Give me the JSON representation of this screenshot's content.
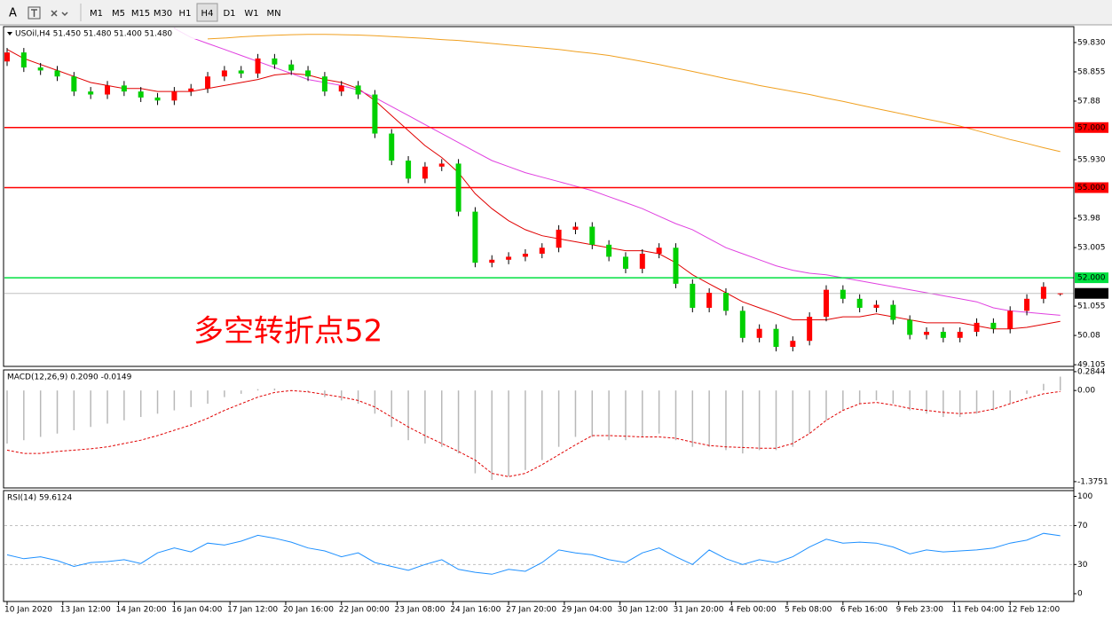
{
  "toolbar": {
    "text_tool": "A",
    "timeframes": [
      "M1",
      "M5",
      "M15",
      "M30",
      "H1",
      "H4",
      "D1",
      "W1",
      "MN"
    ],
    "active": "H4"
  },
  "chart_data": [
    {
      "type": "candlestick",
      "title": "USOil,H4  51.450 51.480 51.400 51.480",
      "annotation": "多空转折点52",
      "up_color": "#ff0000",
      "down_color": "#00d000",
      "x": [
        0,
        3,
        6,
        9,
        12,
        15,
        18,
        21,
        24,
        27,
        30,
        33,
        36,
        39,
        42,
        45,
        48,
        51,
        54,
        57,
        60,
        63,
        66,
        69,
        72,
        75,
        78,
        81,
        84,
        87,
        90,
        93,
        96,
        99,
        102,
        105,
        108,
        111,
        114,
        117,
        120,
        123,
        126,
        129,
        132,
        135,
        138,
        141,
        144,
        147,
        150,
        153,
        156,
        159,
        162,
        165,
        168,
        171,
        174,
        177,
        180,
        183,
        186,
        189
      ],
      "xlim": [
        0,
        190
      ],
      "open": [
        59.2,
        59.5,
        59.0,
        58.9,
        58.7,
        58.2,
        58.1,
        58.4,
        58.2,
        58.0,
        57.9,
        58.2,
        58.3,
        58.7,
        58.9,
        58.8,
        59.3,
        59.1,
        58.9,
        58.7,
        58.2,
        58.4,
        58.1,
        56.8,
        55.9,
        55.3,
        55.7,
        55.8,
        54.2,
        52.5,
        52.6,
        52.7,
        52.8,
        53.0,
        53.6,
        53.7,
        53.1,
        52.7,
        52.3,
        52.8,
        53.0,
        51.8,
        51.0,
        51.5,
        50.9,
        50.0,
        50.3,
        49.7,
        49.9,
        50.7,
        51.6,
        51.3,
        51.0,
        51.1,
        50.6,
        50.1,
        50.2,
        50.0,
        50.2,
        50.5,
        50.3,
        50.9,
        51.3,
        51.45
      ],
      "high": [
        59.65,
        59.65,
        59.15,
        59.05,
        58.85,
        58.35,
        58.55,
        58.55,
        58.35,
        58.15,
        58.35,
        58.45,
        58.85,
        59.05,
        59.05,
        59.45,
        59.45,
        59.25,
        59.05,
        58.85,
        58.55,
        58.55,
        58.25,
        56.95,
        56.05,
        55.85,
        55.95,
        55.95,
        54.35,
        52.75,
        52.85,
        52.95,
        53.15,
        53.75,
        53.85,
        53.85,
        53.25,
        52.85,
        52.95,
        53.15,
        53.15,
        51.95,
        51.65,
        51.65,
        51.05,
        50.45,
        50.45,
        50.05,
        50.85,
        51.75,
        51.75,
        51.45,
        51.25,
        51.25,
        50.75,
        50.35,
        50.35,
        50.35,
        50.65,
        50.65,
        51.05,
        51.45,
        51.85,
        51.48
      ],
      "low": [
        59.05,
        58.85,
        58.75,
        58.55,
        58.05,
        57.95,
        57.95,
        58.05,
        57.85,
        57.75,
        57.75,
        58.05,
        58.15,
        58.55,
        58.65,
        58.65,
        58.95,
        58.75,
        58.55,
        58.05,
        58.05,
        57.95,
        56.65,
        55.75,
        55.15,
        55.15,
        55.55,
        54.05,
        52.35,
        52.35,
        52.45,
        52.55,
        52.65,
        52.85,
        53.45,
        52.95,
        52.55,
        52.15,
        52.15,
        52.65,
        51.65,
        50.85,
        50.85,
        50.75,
        49.85,
        49.85,
        49.55,
        49.55,
        49.75,
        50.55,
        51.15,
        50.85,
        50.85,
        50.45,
        49.95,
        49.95,
        49.85,
        49.85,
        50.05,
        50.15,
        50.15,
        50.75,
        51.15,
        51.4
      ],
      "close": [
        59.5,
        59.0,
        58.9,
        58.7,
        58.2,
        58.1,
        58.4,
        58.2,
        58.0,
        57.9,
        58.2,
        58.3,
        58.7,
        58.9,
        58.8,
        59.3,
        59.1,
        58.9,
        58.7,
        58.2,
        58.4,
        58.1,
        56.8,
        55.9,
        55.3,
        55.7,
        55.8,
        54.2,
        52.5,
        52.6,
        52.7,
        52.8,
        53.0,
        53.6,
        53.7,
        53.1,
        52.7,
        52.3,
        52.8,
        53.0,
        51.8,
        51.0,
        51.5,
        50.9,
        50.0,
        50.3,
        49.7,
        49.9,
        50.7,
        51.6,
        51.3,
        51.0,
        51.1,
        50.6,
        50.1,
        50.2,
        50.0,
        50.2,
        50.5,
        50.3,
        50.9,
        51.3,
        51.7,
        51.48
      ],
      "series": [
        {
          "color": "#e00000",
          "values": [
            59.6,
            59.3,
            59.1,
            58.9,
            58.7,
            58.5,
            58.4,
            58.3,
            58.3,
            58.2,
            58.2,
            58.2,
            58.3,
            58.4,
            58.5,
            58.6,
            58.75,
            58.8,
            58.75,
            58.6,
            58.5,
            58.3,
            57.9,
            57.4,
            56.9,
            56.4,
            56.0,
            55.5,
            54.8,
            54.3,
            53.9,
            53.6,
            53.4,
            53.3,
            53.2,
            53.1,
            53.0,
            52.9,
            52.9,
            52.8,
            52.5,
            52.1,
            51.8,
            51.5,
            51.2,
            51.0,
            50.8,
            50.6,
            50.6,
            50.6,
            50.7,
            50.7,
            50.8,
            50.7,
            50.6,
            50.5,
            50.5,
            50.5,
            50.4,
            50.3,
            50.3,
            50.35,
            50.45,
            50.55
          ]
        },
        {
          "color": "#e040e0",
          "values": [
            null,
            null,
            null,
            null,
            null,
            null,
            null,
            null,
            null,
            null,
            60.3,
            60.0,
            59.8,
            59.6,
            59.4,
            59.2,
            59.0,
            58.8,
            58.6,
            58.5,
            58.4,
            58.25,
            58.0,
            57.7,
            57.4,
            57.1,
            56.8,
            56.5,
            56.2,
            55.9,
            55.7,
            55.5,
            55.35,
            55.2,
            55.05,
            54.9,
            54.7,
            54.5,
            54.3,
            54.05,
            53.8,
            53.6,
            53.3,
            53.0,
            52.8,
            52.6,
            52.4,
            52.25,
            52.15,
            52.1,
            52.0,
            51.9,
            51.8,
            51.7,
            51.6,
            51.5,
            51.4,
            51.3,
            51.2,
            51.0,
            50.9,
            50.85,
            50.8,
            50.75
          ]
        },
        {
          "color": "#f0a020",
          "values": [
            null,
            null,
            null,
            null,
            null,
            null,
            null,
            null,
            null,
            null,
            null,
            null,
            59.95,
            59.98,
            60.02,
            60.05,
            60.07,
            60.09,
            60.1,
            60.1,
            60.09,
            60.08,
            60.06,
            60.03,
            60.0,
            59.97,
            59.93,
            59.9,
            59.85,
            59.8,
            59.75,
            59.7,
            59.65,
            59.6,
            59.53,
            59.47,
            59.4,
            59.3,
            59.2,
            59.1,
            58.98,
            58.87,
            58.75,
            58.63,
            58.52,
            58.4,
            58.3,
            58.2,
            58.1,
            57.98,
            57.87,
            57.75,
            57.63,
            57.52,
            57.4,
            57.28,
            57.17,
            57.05,
            56.9,
            56.75,
            56.6,
            56.47,
            56.33,
            56.2
          ]
        }
      ],
      "hlines": [
        {
          "value": 57,
          "label": "57.000",
          "color": "#ff0000"
        },
        {
          "value": 55,
          "label": "55.000",
          "color": "#ff0000"
        },
        {
          "value": 52,
          "label": "52.000",
          "color": "#00e040"
        }
      ],
      "last": {
        "value": 51.48,
        "label": "51.480"
      },
      "ylim": [
        49.05,
        60.36
      ],
      "yticks": [
        {
          "value": 59.83,
          "label": "59.830"
        },
        58.855,
        57.88,
        {
          "value": 55.93,
          "label": "55.930"
        },
        53.98,
        53.005,
        51.055,
        50.08,
        49.105
      ]
    },
    {
      "type": "bar",
      "title": "MACD(12,26,9) 0.2090 -0.0149",
      "series": [
        {
          "color": "#b8b8b8",
          "values": [
            -0.8,
            -0.75,
            -0.7,
            -0.65,
            -0.6,
            -0.55,
            -0.5,
            -0.45,
            -0.4,
            -0.35,
            -0.3,
            -0.25,
            -0.2,
            -0.1,
            -0.05,
            0.02,
            0.03,
            0.0,
            -0.02,
            -0.1,
            -0.15,
            -0.2,
            -0.35,
            -0.55,
            -0.75,
            -0.8,
            -0.85,
            -0.95,
            -1.25,
            -1.35,
            -1.3,
            -1.2,
            -1.05,
            -0.85,
            -0.7,
            -0.7,
            -0.75,
            -0.75,
            -0.7,
            -0.65,
            -0.75,
            -0.85,
            -0.85,
            -0.9,
            -0.95,
            -0.9,
            -0.9,
            -0.85,
            -0.65,
            -0.45,
            -0.3,
            -0.2,
            -0.15,
            -0.2,
            -0.3,
            -0.35,
            -0.4,
            -0.4,
            -0.35,
            -0.3,
            -0.2,
            -0.05,
            0.1,
            0.209
          ]
        },
        {
          "color": "#e00000",
          "dashed": true,
          "values": [
            -0.9,
            -0.95,
            -0.95,
            -0.92,
            -0.9,
            -0.88,
            -0.85,
            -0.8,
            -0.75,
            -0.68,
            -0.6,
            -0.52,
            -0.42,
            -0.3,
            -0.2,
            -0.1,
            -0.03,
            0.0,
            -0.02,
            -0.06,
            -0.1,
            -0.15,
            -0.25,
            -0.4,
            -0.55,
            -0.68,
            -0.8,
            -0.92,
            -1.05,
            -1.25,
            -1.3,
            -1.25,
            -1.12,
            -0.97,
            -0.82,
            -0.68,
            -0.68,
            -0.69,
            -0.7,
            -0.7,
            -0.72,
            -0.78,
            -0.83,
            -0.85,
            -0.86,
            -0.87,
            -0.87,
            -0.8,
            -0.65,
            -0.45,
            -0.3,
            -0.2,
            -0.18,
            -0.22,
            -0.27,
            -0.3,
            -0.33,
            -0.35,
            -0.33,
            -0.28,
            -0.2,
            -0.12,
            -0.05,
            -0.0149
          ]
        }
      ],
      "ylim": [
        -1.47,
        0.31
      ],
      "yticks": [
        0.2844,
        {
          "value": 0,
          "label": "0.00"
        },
        -1.3751
      ]
    },
    {
      "type": "line",
      "title": "RSI(14) 59.6124",
      "series": [
        {
          "color": "#1e90ff",
          "values": [
            40,
            36,
            38,
            34,
            28,
            32,
            33,
            35,
            31,
            42,
            47,
            43,
            52,
            50,
            54,
            60,
            57,
            53,
            47,
            44,
            38,
            42,
            32,
            28,
            24,
            30,
            35,
            25,
            22,
            20,
            25,
            23,
            32,
            45,
            42,
            40,
            35,
            32,
            42,
            47,
            38,
            30,
            45,
            36,
            30,
            35,
            32,
            38,
            48,
            56,
            52,
            53,
            52,
            48,
            41,
            45,
            43,
            44,
            45,
            47,
            52,
            55,
            62,
            59.6124
          ]
        }
      ],
      "levels": [
        30,
        70
      ],
      "ylim": [
        -8,
        106
      ],
      "yticks": [
        100,
        70,
        30,
        0
      ],
      "xticks": [
        {
          "value": 0,
          "label": "10 Jan 2020"
        },
        {
          "value": 10,
          "label": "13 Jan 12:00"
        },
        {
          "value": 20,
          "label": "14 Jan 20:00"
        },
        {
          "value": 30,
          "label": "16 Jan 04:00"
        },
        {
          "value": 40,
          "label": "17 Jan 12:00"
        },
        {
          "value": 50,
          "label": "20 Jan 16:00"
        },
        {
          "value": 60,
          "label": "22 Jan 00:00"
        },
        {
          "value": 70,
          "label": "23 Jan 08:00"
        },
        {
          "value": 80,
          "label": "24 Jan 16:00"
        },
        {
          "value": 90,
          "label": "27 Jan 20:00"
        },
        {
          "value": 100,
          "label": "29 Jan 04:00"
        },
        {
          "value": 110,
          "label": "30 Jan 12:00"
        },
        {
          "value": 120,
          "label": "31 Jan 20:00"
        },
        {
          "value": 130,
          "label": "4 Feb 00:00"
        },
        {
          "value": 140,
          "label": "5 Feb 08:00"
        },
        {
          "value": 150,
          "label": "6 Feb 16:00"
        },
        {
          "value": 160,
          "label": "9 Feb 23:00"
        },
        {
          "value": 170,
          "label": "11 Feb 04:00"
        },
        {
          "value": 180,
          "label": "12 Feb 12:00"
        }
      ]
    }
  ]
}
